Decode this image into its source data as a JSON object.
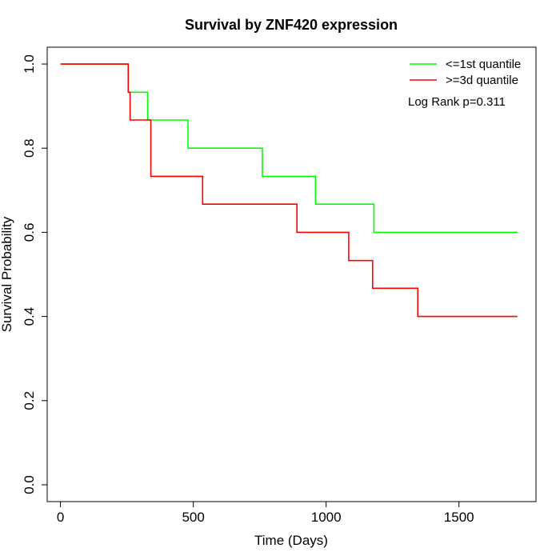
{
  "chart_data": {
    "type": "line",
    "title": "Survival by ZNF420 expression",
    "xlabel": "Time (Days)",
    "ylabel": "Survival Probability",
    "xlim": [
      -50,
      1790
    ],
    "ylim": [
      -0.04,
      1.04
    ],
    "xticks": [
      0,
      500,
      1000,
      1500
    ],
    "xtick_labels": [
      "0",
      "500",
      "1000",
      "1500"
    ],
    "yticks": [
      0.0,
      0.2,
      0.4,
      0.6,
      0.8,
      1.0
    ],
    "ytick_labels": [
      "0.0",
      "0.2",
      "0.4",
      "0.6",
      "0.8",
      "1.0"
    ],
    "grid": false,
    "legend_position": "top-right",
    "annotation": "Log Rank p=0.311",
    "series": [
      {
        "name": "<=1st quantile",
        "color": "#00ff00",
        "step": true,
        "x": [
          0,
          255,
          328,
          480,
          760,
          960,
          1180,
          1720
        ],
        "y": [
          1.0,
          0.933,
          0.867,
          0.8,
          0.733,
          0.667,
          0.6,
          0.6
        ]
      },
      {
        "name": ">=3d quantile",
        "color": "#ff0000",
        "step": true,
        "x": [
          0,
          255,
          262,
          340,
          535,
          890,
          1085,
          1175,
          1345,
          1720
        ],
        "y": [
          1.0,
          0.933,
          0.867,
          0.733,
          0.667,
          0.6,
          0.533,
          0.467,
          0.4,
          0.4
        ]
      }
    ]
  }
}
